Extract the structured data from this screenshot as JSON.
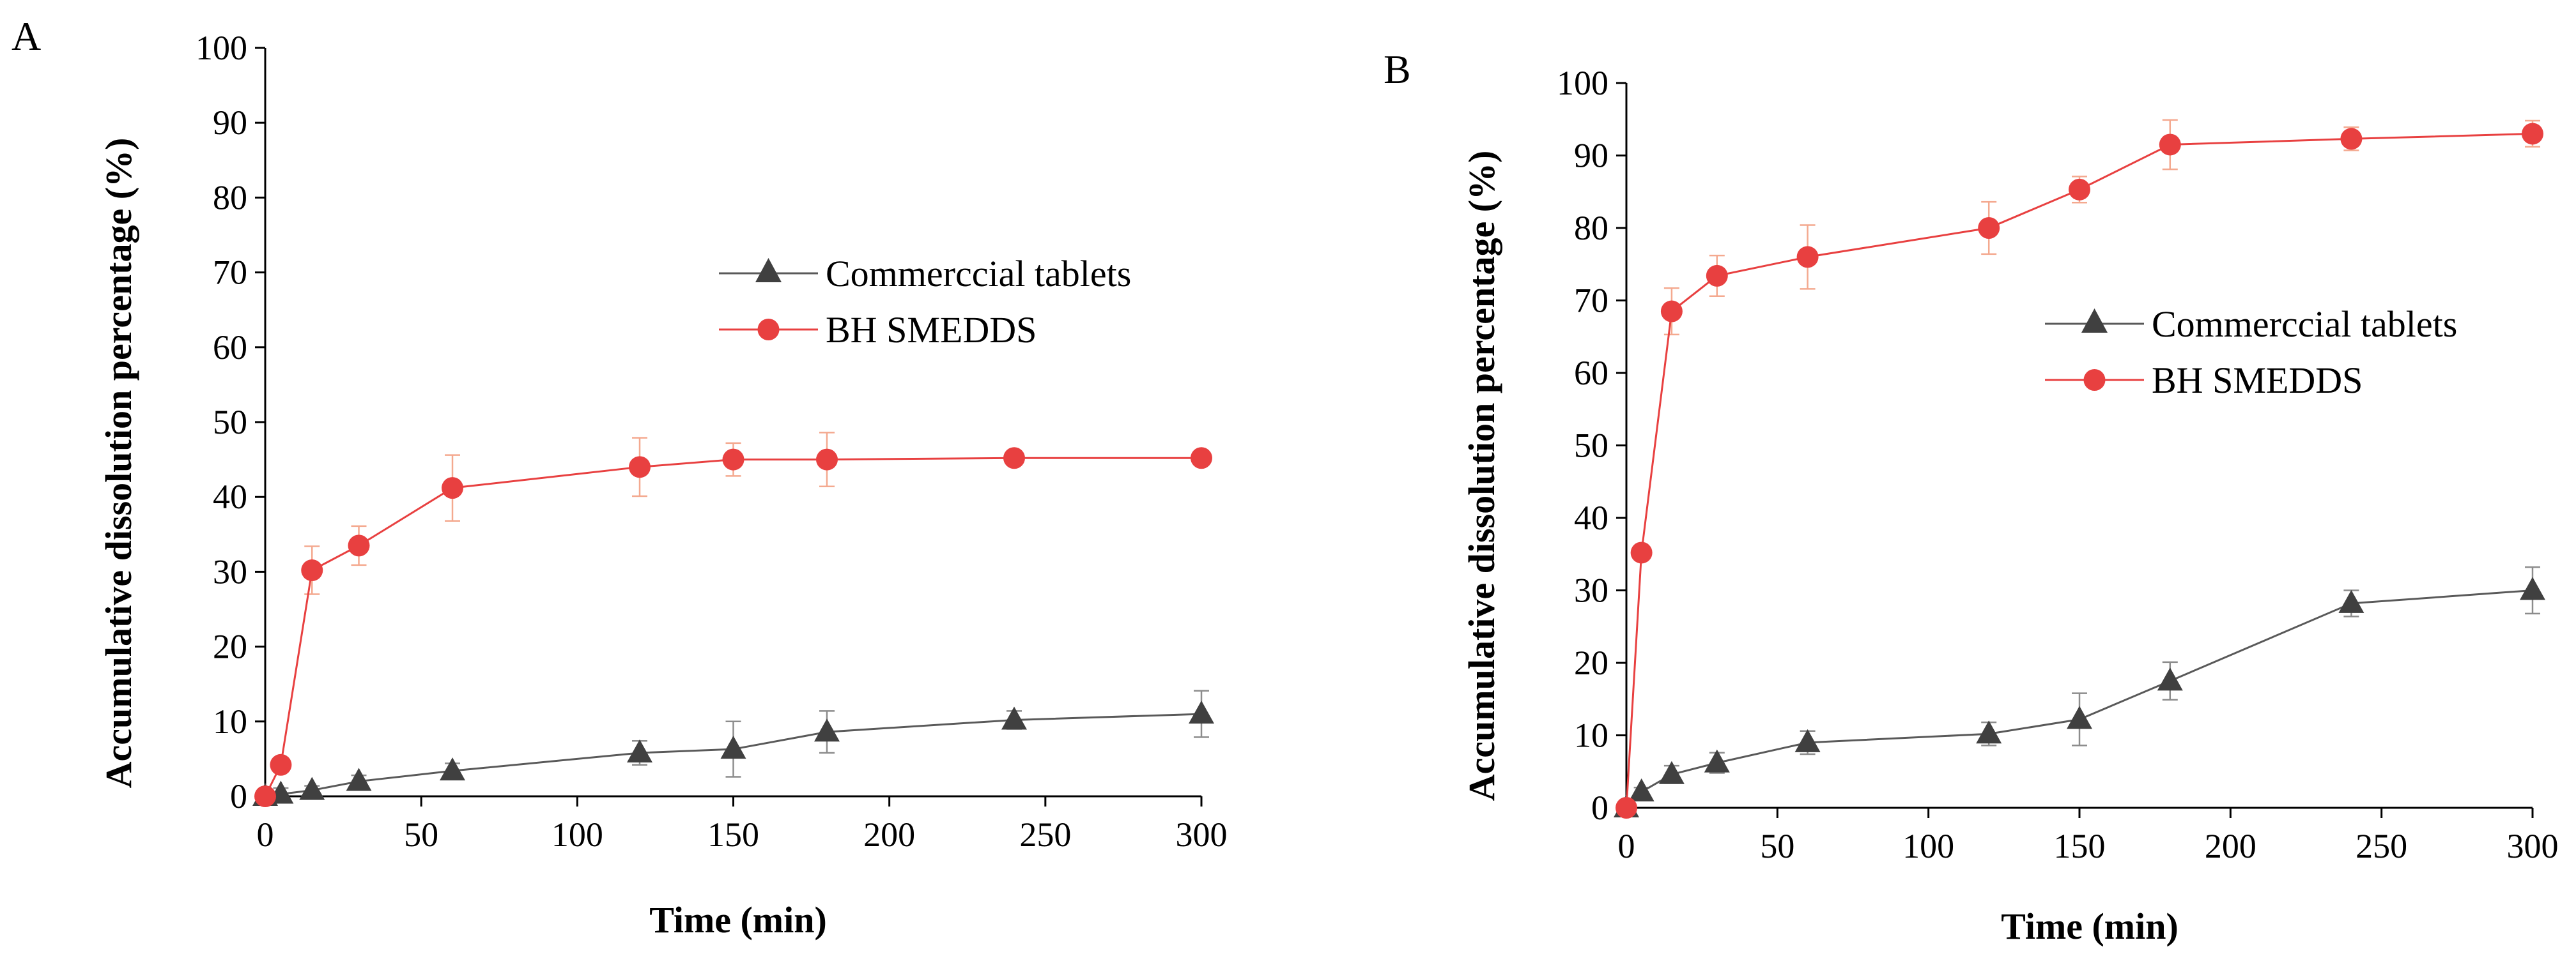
{
  "chart_data": [
    {
      "type": "line",
      "panel_label": "A",
      "xlabel": "Time (min)",
      "ylabel": "Accumulative dissolution percentage (%)",
      "xlim": [
        0,
        300
      ],
      "ylim": [
        0,
        100
      ],
      "xticks": [
        0,
        50,
        100,
        150,
        200,
        250,
        300
      ],
      "yticks": [
        0,
        10,
        20,
        30,
        40,
        50,
        60,
        70,
        80,
        90,
        100
      ],
      "legend_position": "center-right",
      "series": [
        {
          "name": "Commerccial tablets",
          "color": "#595959",
          "marker": "triangle",
          "x": [
            0,
            5,
            15,
            30,
            60,
            120,
            150,
            180,
            240,
            300
          ],
          "y": [
            0,
            0.3,
            0.8,
            2.0,
            3.4,
            5.8,
            6.3,
            8.6,
            10.2,
            11.0
          ],
          "error": [
            0,
            0.8,
            0.6,
            0.8,
            1.0,
            1.6,
            3.7,
            2.8,
            1.2,
            3.1
          ]
        },
        {
          "name": "BH SMEDDS",
          "color": "#e84040",
          "marker": "circle",
          "x": [
            0,
            5,
            15,
            30,
            60,
            120,
            150,
            180,
            240,
            300
          ],
          "y": [
            0,
            4.2,
            30.2,
            33.5,
            41.2,
            44.0,
            45.0,
            45.0,
            45.2,
            45.2
          ],
          "error": [
            0,
            0.6,
            3.2,
            2.6,
            4.4,
            3.9,
            2.2,
            3.6,
            0.8,
            0.6
          ]
        }
      ]
    },
    {
      "type": "line",
      "panel_label": "B",
      "xlabel": "Time (min)",
      "ylabel": "Accumulative dissolution percentage (%)",
      "xlim": [
        0,
        300
      ],
      "ylim": [
        0,
        100
      ],
      "xticks": [
        0,
        50,
        100,
        150,
        200,
        250,
        300
      ],
      "yticks": [
        0,
        10,
        20,
        30,
        40,
        50,
        60,
        70,
        80,
        90,
        100
      ],
      "legend_position": "center-right",
      "series": [
        {
          "name": "Commerccial tablets",
          "color": "#595959",
          "marker": "triangle",
          "x": [
            0,
            5,
            15,
            30,
            60,
            120,
            150,
            180,
            240,
            300
          ],
          "y": [
            0,
            2.2,
            4.6,
            6.2,
            9.0,
            10.2,
            12.2,
            17.5,
            28.2,
            30.0
          ],
          "error": [
            0,
            0.6,
            1.2,
            1.4,
            1.6,
            1.6,
            3.6,
            2.6,
            1.8,
            3.2
          ]
        },
        {
          "name": "BH SMEDDS",
          "color": "#e84040",
          "marker": "circle",
          "x": [
            0,
            5,
            15,
            30,
            60,
            120,
            150,
            180,
            240,
            300
          ],
          "y": [
            0,
            35.2,
            68.5,
            73.4,
            76.0,
            80.0,
            85.3,
            91.5,
            92.3,
            93.0
          ],
          "error": [
            0,
            0.6,
            3.2,
            2.8,
            4.4,
            3.6,
            1.8,
            3.4,
            1.6,
            1.8
          ]
        }
      ]
    }
  ]
}
